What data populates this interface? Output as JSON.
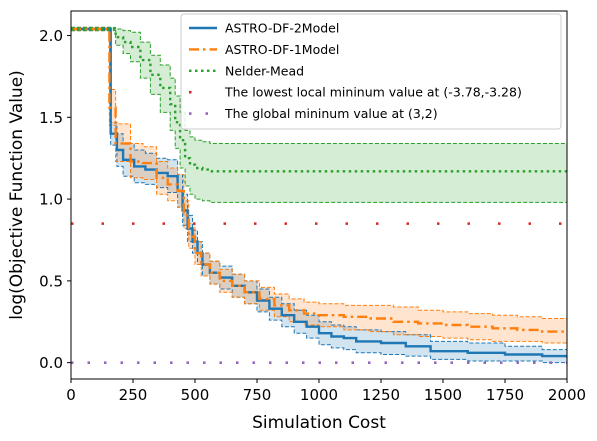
{
  "chart_data": {
    "type": "line",
    "title": "",
    "xlabel": "Simulation Cost",
    "ylabel": "log(Objective Function Value)",
    "xlim": [
      0,
      2000
    ],
    "ylim": [
      -0.1,
      2.15
    ],
    "xticks": [
      0,
      250,
      500,
      750,
      1000,
      1250,
      1500,
      1750,
      2000
    ],
    "yticks": [
      0.0,
      0.5,
      1.0,
      1.5,
      2.0
    ],
    "xtick_labels": [
      "0",
      "250",
      "500",
      "750",
      "1000",
      "1250",
      "1500",
      "1750",
      "2000"
    ],
    "ytick_labels": [
      "0.0",
      "0.5",
      "1.0",
      "1.5",
      "2.0"
    ],
    "grid": false,
    "legend_position": "top-right",
    "series": [
      {
        "name": "ASTRO-DF-2Model",
        "color": "#1f77b4",
        "style": "solid",
        "x": [
          0,
          145,
          160,
          185,
          210,
          255,
          300,
          345,
          390,
          430,
          450,
          470,
          490,
          510,
          530,
          560,
          600,
          650,
          700,
          750,
          800,
          850,
          900,
          950,
          1000,
          1050,
          1100,
          1150,
          1250,
          1350,
          1450,
          1600,
          1750,
          1900,
          2000
        ],
        "y": [
          2.04,
          2.04,
          1.4,
          1.3,
          1.24,
          1.2,
          1.18,
          1.16,
          1.14,
          1.05,
          0.93,
          0.82,
          0.74,
          0.67,
          0.6,
          0.55,
          0.52,
          0.47,
          0.43,
          0.38,
          0.33,
          0.29,
          0.25,
          0.22,
          0.18,
          0.16,
          0.15,
          0.13,
          0.12,
          0.1,
          0.07,
          0.06,
          0.05,
          0.04,
          0.03
        ],
        "band_lower": [
          2.03,
          2.03,
          1.33,
          1.2,
          1.14,
          1.1,
          1.09,
          1.07,
          1.04,
          0.95,
          0.84,
          0.74,
          0.67,
          0.6,
          0.53,
          0.48,
          0.45,
          0.4,
          0.36,
          0.31,
          0.26,
          0.22,
          0.18,
          0.15,
          0.11,
          0.09,
          0.08,
          0.06,
          0.05,
          0.04,
          0.02,
          0.01,
          0.01,
          0.0,
          0.0
        ],
        "band_upper": [
          2.05,
          2.05,
          1.47,
          1.4,
          1.34,
          1.3,
          1.28,
          1.25,
          1.24,
          1.15,
          1.03,
          0.9,
          0.81,
          0.74,
          0.67,
          0.62,
          0.59,
          0.54,
          0.5,
          0.45,
          0.4,
          0.36,
          0.32,
          0.29,
          0.25,
          0.23,
          0.22,
          0.2,
          0.19,
          0.17,
          0.13,
          0.12,
          0.1,
          0.08,
          0.07
        ]
      },
      {
        "name": "ASTRO-DF-1Model",
        "color": "#ff7f0e",
        "style": "dashdot",
        "x": [
          0,
          140,
          155,
          180,
          240,
          290,
          345,
          390,
          430,
          455,
          475,
          500,
          525,
          560,
          600,
          650,
          700,
          760,
          820,
          880,
          940,
          1000,
          1100,
          1200,
          1300,
          1400,
          1500,
          1600,
          1700,
          1800,
          1900,
          2000
        ],
        "y": [
          2.04,
          2.04,
          1.56,
          1.34,
          1.23,
          1.22,
          1.13,
          1.09,
          1.05,
          0.9,
          0.77,
          0.67,
          0.6,
          0.55,
          0.5,
          0.47,
          0.43,
          0.39,
          0.35,
          0.32,
          0.3,
          0.29,
          0.28,
          0.27,
          0.25,
          0.24,
          0.23,
          0.22,
          0.21,
          0.2,
          0.19,
          0.19
        ],
        "band_lower": [
          2.03,
          2.03,
          1.45,
          1.23,
          1.13,
          1.12,
          1.03,
          0.99,
          0.95,
          0.82,
          0.7,
          0.6,
          0.53,
          0.48,
          0.43,
          0.4,
          0.36,
          0.32,
          0.28,
          0.25,
          0.23,
          0.22,
          0.2,
          0.19,
          0.17,
          0.16,
          0.15,
          0.14,
          0.13,
          0.13,
          0.12,
          0.12
        ],
        "band_upper": [
          2.05,
          2.05,
          1.67,
          1.46,
          1.34,
          1.32,
          1.23,
          1.19,
          1.15,
          0.99,
          0.85,
          0.74,
          0.67,
          0.62,
          0.57,
          0.54,
          0.5,
          0.46,
          0.42,
          0.39,
          0.37,
          0.36,
          0.35,
          0.35,
          0.34,
          0.32,
          0.31,
          0.3,
          0.29,
          0.28,
          0.27,
          0.27
        ]
      },
      {
        "name": "Nelder-Mead",
        "color": "#2ca02c",
        "style": "dotted",
        "x": [
          0,
          150,
          180,
          210,
          240,
          280,
          320,
          360,
          400,
          420,
          440,
          460,
          480,
          500,
          530,
          560,
          600,
          2000
        ],
        "y": [
          2.04,
          2.04,
          1.99,
          1.96,
          1.93,
          1.85,
          1.76,
          1.68,
          1.58,
          1.47,
          1.36,
          1.25,
          1.21,
          1.19,
          1.18,
          1.17,
          1.17,
          1.17
        ],
        "band_lower": [
          2.03,
          2.03,
          1.94,
          1.89,
          1.84,
          1.74,
          1.64,
          1.53,
          1.42,
          1.31,
          1.19,
          1.08,
          1.03,
          1.0,
          0.99,
          0.98,
          0.98,
          0.98
        ],
        "band_upper": [
          2.05,
          2.05,
          2.04,
          2.03,
          2.02,
          1.96,
          1.88,
          1.82,
          1.74,
          1.63,
          1.53,
          1.42,
          1.38,
          1.36,
          1.35,
          1.34,
          1.34,
          1.34
        ]
      }
    ],
    "reference_lines": [
      {
        "name": "The lowest local mininum value at (-3.78,-3.28)",
        "color": "#d62728",
        "style": "dotted",
        "y": 0.85
      },
      {
        "name": "The global mininum value at (3,2)",
        "color": "#9467bd",
        "style": "dashdot",
        "y": 0.0
      }
    ]
  }
}
